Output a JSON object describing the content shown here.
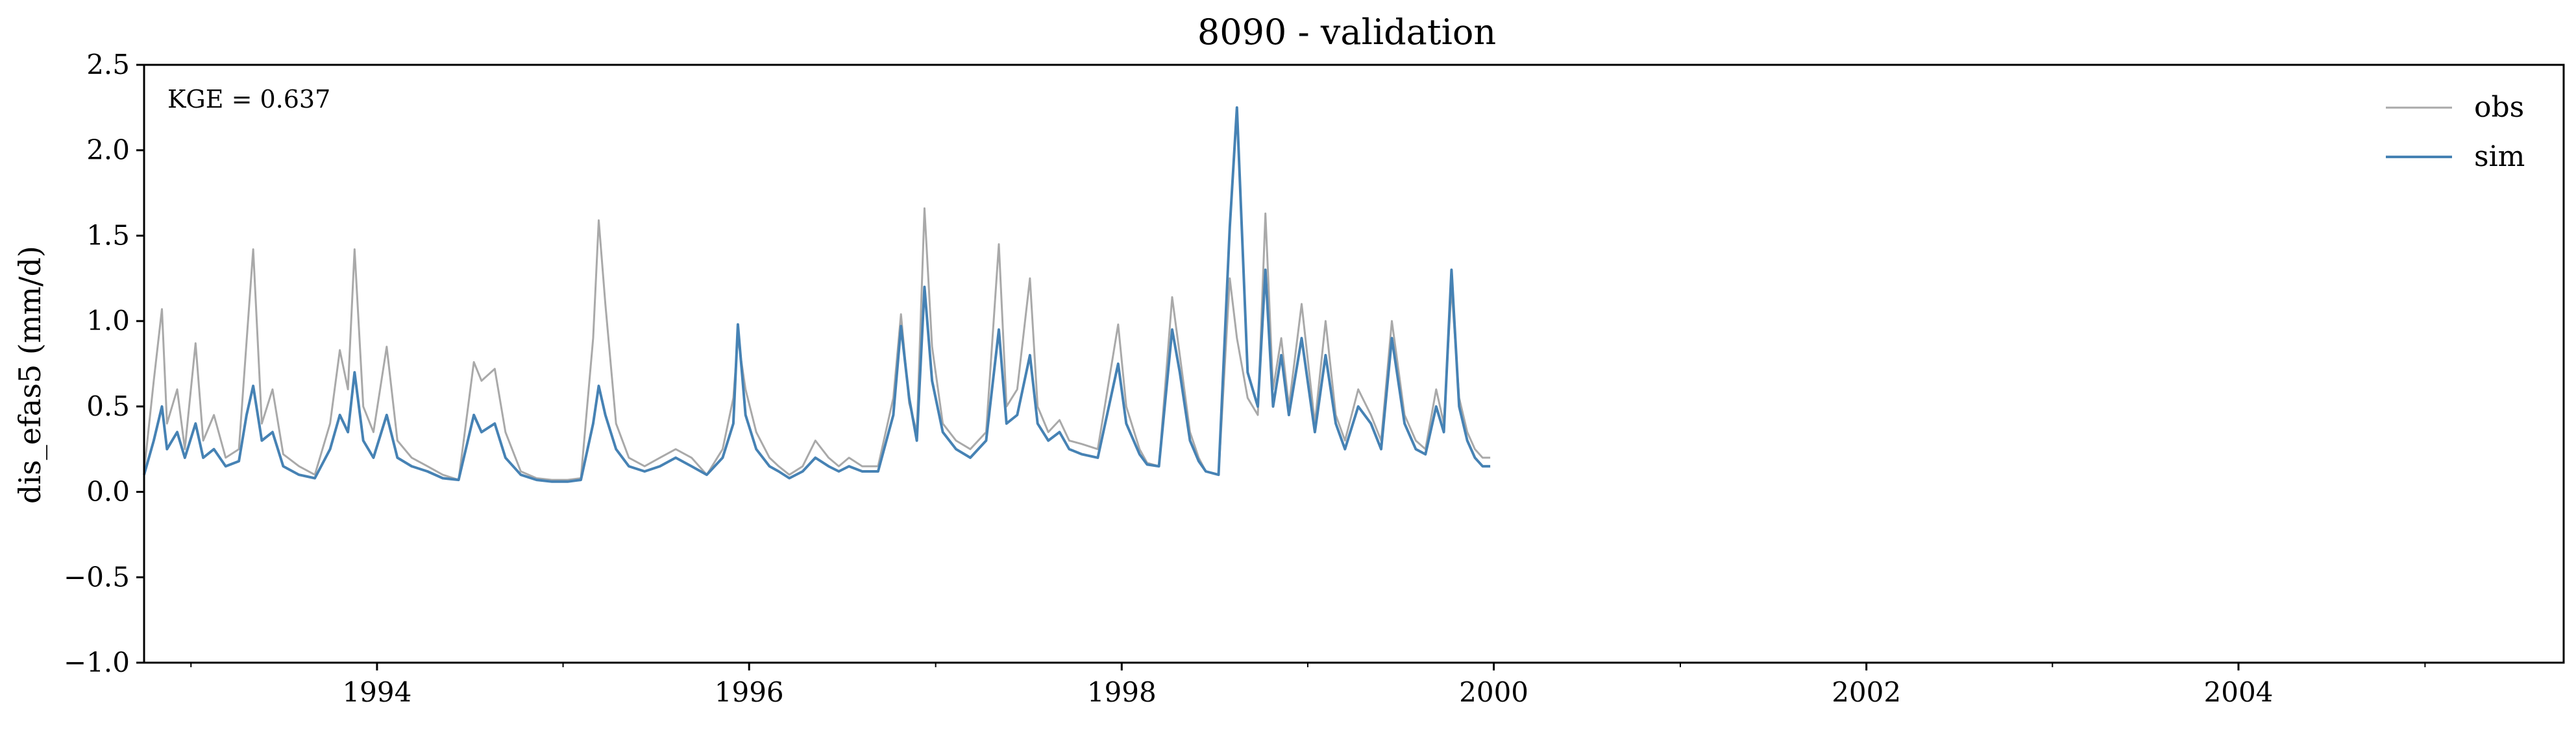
{
  "chart_data": {
    "type": "line",
    "title": "8090 - validation",
    "ylabel": "dis_efas5 (mm/d)",
    "xlabel": "",
    "xlim": [
      "1992-10-01",
      "2005-09-30"
    ],
    "ylim": [
      -1.0,
      2.5
    ],
    "grid": false,
    "legend": "top-right",
    "annotation": "KGE = 0.637",
    "x_ticks": [
      {
        "date": "1994-01-01",
        "label": "1994"
      },
      {
        "date": "1996-01-01",
        "label": "1996"
      },
      {
        "date": "1998-01-01",
        "label": "1998"
      },
      {
        "date": "2000-01-01",
        "label": "2000"
      },
      {
        "date": "2002-01-01",
        "label": "2002"
      },
      {
        "date": "2004-01-01",
        "label": "2004"
      }
    ],
    "y_ticks": [
      {
        "value": 2.5,
        "label": "2.5"
      },
      {
        "value": 2.0,
        "label": "2.0"
      },
      {
        "value": 1.5,
        "label": "1.5"
      },
      {
        "value": 1.0,
        "label": "1.0"
      },
      {
        "value": 0.5,
        "label": "0.5"
      },
      {
        "value": 0.0,
        "label": "0.0"
      },
      {
        "value": -0.5,
        "label": "−0.5"
      },
      {
        "value": -1.0,
        "label": "−1.0"
      }
    ],
    "series": [
      {
        "name": "obs",
        "color": "#a9a9a9",
        "points": [
          [
            "1992-10-01",
            0.12
          ],
          [
            "1992-10-20",
            0.65
          ],
          [
            "1992-11-05",
            1.07
          ],
          [
            "1992-11-15",
            0.4
          ],
          [
            "1992-12-05",
            0.6
          ],
          [
            "1992-12-20",
            0.25
          ],
          [
            "1993-01-10",
            0.87
          ],
          [
            "1993-01-25",
            0.3
          ],
          [
            "1993-02-15",
            0.45
          ],
          [
            "1993-03-10",
            0.2
          ],
          [
            "1993-04-05",
            0.25
          ],
          [
            "1993-04-20",
            0.88
          ],
          [
            "1993-05-03",
            1.42
          ],
          [
            "1993-05-20",
            0.4
          ],
          [
            "1993-06-10",
            0.6
          ],
          [
            "1993-07-01",
            0.22
          ],
          [
            "1993-08-01",
            0.15
          ],
          [
            "1993-09-01",
            0.1
          ],
          [
            "1993-10-01",
            0.4
          ],
          [
            "1993-10-20",
            0.83
          ],
          [
            "1993-11-05",
            0.6
          ],
          [
            "1993-11-18",
            1.42
          ],
          [
            "1993-12-05",
            0.5
          ],
          [
            "1993-12-25",
            0.35
          ],
          [
            "1994-01-20",
            0.85
          ],
          [
            "1994-02-10",
            0.3
          ],
          [
            "1994-03-10",
            0.2
          ],
          [
            "1994-04-10",
            0.15
          ],
          [
            "1994-05-10",
            0.1
          ],
          [
            "1994-06-10",
            0.07
          ],
          [
            "1994-07-10",
            0.76
          ],
          [
            "1994-07-25",
            0.65
          ],
          [
            "1994-08-20",
            0.72
          ],
          [
            "1994-09-10",
            0.35
          ],
          [
            "1994-10-10",
            0.12
          ],
          [
            "1994-11-10",
            0.08
          ],
          [
            "1994-12-10",
            0.07
          ],
          [
            "1995-01-10",
            0.07
          ],
          [
            "1995-02-05",
            0.08
          ],
          [
            "1995-03-01",
            0.9
          ],
          [
            "1995-03-12",
            1.59
          ],
          [
            "1995-03-25",
            1.1
          ],
          [
            "1995-04-15",
            0.4
          ],
          [
            "1995-05-10",
            0.2
          ],
          [
            "1995-06-10",
            0.15
          ],
          [
            "1995-07-10",
            0.2
          ],
          [
            "1995-08-10",
            0.25
          ],
          [
            "1995-09-10",
            0.2
          ],
          [
            "1995-10-10",
            0.1
          ],
          [
            "1995-11-10",
            0.25
          ],
          [
            "1995-12-01",
            0.55
          ],
          [
            "1995-12-10",
            0.9
          ],
          [
            "1995-12-25",
            0.6
          ],
          [
            "1996-01-15",
            0.35
          ],
          [
            "1996-02-10",
            0.2
          ],
          [
            "1996-02-28",
            0.15
          ],
          [
            "1996-03-20",
            0.1
          ],
          [
            "1996-04-15",
            0.15
          ],
          [
            "1996-05-10",
            0.3
          ],
          [
            "1996-06-05",
            0.2
          ],
          [
            "1996-06-25",
            0.15
          ],
          [
            "1996-07-15",
            0.2
          ],
          [
            "1996-08-10",
            0.15
          ],
          [
            "1996-09-10",
            0.15
          ],
          [
            "1996-10-10",
            0.55
          ],
          [
            "1996-10-25",
            1.04
          ],
          [
            "1996-11-10",
            0.52
          ],
          [
            "1996-11-25",
            0.35
          ],
          [
            "1996-12-10",
            1.66
          ],
          [
            "1996-12-25",
            0.85
          ],
          [
            "1997-01-15",
            0.4
          ],
          [
            "1997-02-10",
            0.3
          ],
          [
            "1997-03-10",
            0.25
          ],
          [
            "1997-04-10",
            0.35
          ],
          [
            "1997-05-05",
            1.45
          ],
          [
            "1997-05-20",
            0.5
          ],
          [
            "1997-06-10",
            0.6
          ],
          [
            "1997-07-05",
            1.25
          ],
          [
            "1997-07-20",
            0.5
          ],
          [
            "1997-08-10",
            0.35
          ],
          [
            "1997-09-01",
            0.42
          ],
          [
            "1997-09-20",
            0.3
          ],
          [
            "1997-10-15",
            0.28
          ],
          [
            "1997-11-15",
            0.25
          ],
          [
            "1997-12-25",
            0.98
          ],
          [
            "1998-01-10",
            0.5
          ],
          [
            "1998-02-05",
            0.25
          ],
          [
            "1998-02-20",
            0.17
          ],
          [
            "1998-03-15",
            0.15
          ],
          [
            "1998-04-10",
            1.14
          ],
          [
            "1998-04-25",
            0.8
          ],
          [
            "1998-05-15",
            0.35
          ],
          [
            "1998-06-01",
            0.2
          ],
          [
            "1998-06-15",
            0.12
          ],
          [
            "1998-07-10",
            0.1
          ],
          [
            "1998-08-01",
            1.25
          ],
          [
            "1998-08-15",
            0.9
          ],
          [
            "1998-09-05",
            0.55
          ],
          [
            "1998-09-25",
            0.45
          ],
          [
            "1998-10-10",
            1.63
          ],
          [
            "1998-10-25",
            0.6
          ],
          [
            "1998-11-10",
            0.9
          ],
          [
            "1998-11-25",
            0.5
          ],
          [
            "1998-12-20",
            1.1
          ],
          [
            "1999-01-15",
            0.4
          ],
          [
            "1999-02-05",
            1.0
          ],
          [
            "1999-02-25",
            0.45
          ],
          [
            "1999-03-15",
            0.3
          ],
          [
            "1999-04-10",
            0.6
          ],
          [
            "1999-05-05",
            0.45
          ],
          [
            "1999-05-25",
            0.3
          ],
          [
            "1999-06-15",
            1.0
          ],
          [
            "1999-07-10",
            0.45
          ],
          [
            "1999-08-01",
            0.3
          ],
          [
            "1999-08-20",
            0.25
          ],
          [
            "1999-09-10",
            0.6
          ],
          [
            "1999-09-25",
            0.4
          ],
          [
            "1999-10-10",
            1.2
          ],
          [
            "1999-10-25",
            0.55
          ],
          [
            "1999-11-10",
            0.35
          ],
          [
            "1999-11-25",
            0.25
          ],
          [
            "1999-12-10",
            0.2
          ],
          [
            "1999-12-25",
            0.2
          ]
        ]
      },
      {
        "name": "sim",
        "color": "#4682b4",
        "points": [
          [
            "1992-10-01",
            0.1
          ],
          [
            "1992-10-20",
            0.3
          ],
          [
            "1992-11-05",
            0.5
          ],
          [
            "1992-11-15",
            0.25
          ],
          [
            "1992-12-05",
            0.35
          ],
          [
            "1992-12-20",
            0.2
          ],
          [
            "1993-01-10",
            0.4
          ],
          [
            "1993-01-25",
            0.2
          ],
          [
            "1993-02-15",
            0.25
          ],
          [
            "1993-03-10",
            0.15
          ],
          [
            "1993-04-05",
            0.18
          ],
          [
            "1993-04-20",
            0.45
          ],
          [
            "1993-05-03",
            0.62
          ],
          [
            "1993-05-20",
            0.3
          ],
          [
            "1993-06-10",
            0.35
          ],
          [
            "1993-07-01",
            0.15
          ],
          [
            "1993-08-01",
            0.1
          ],
          [
            "1993-09-01",
            0.08
          ],
          [
            "1993-10-01",
            0.25
          ],
          [
            "1993-10-20",
            0.45
          ],
          [
            "1993-11-05",
            0.35
          ],
          [
            "1993-11-18",
            0.7
          ],
          [
            "1993-12-05",
            0.3
          ],
          [
            "1993-12-25",
            0.2
          ],
          [
            "1994-01-20",
            0.45
          ],
          [
            "1994-02-10",
            0.2
          ],
          [
            "1994-03-10",
            0.15
          ],
          [
            "1994-04-10",
            0.12
          ],
          [
            "1994-05-10",
            0.08
          ],
          [
            "1994-06-10",
            0.07
          ],
          [
            "1994-07-10",
            0.45
          ],
          [
            "1994-07-25",
            0.35
          ],
          [
            "1994-08-20",
            0.4
          ],
          [
            "1994-09-10",
            0.2
          ],
          [
            "1994-10-10",
            0.1
          ],
          [
            "1994-11-10",
            0.07
          ],
          [
            "1994-12-10",
            0.06
          ],
          [
            "1995-01-10",
            0.06
          ],
          [
            "1995-02-05",
            0.07
          ],
          [
            "1995-03-01",
            0.4
          ],
          [
            "1995-03-12",
            0.62
          ],
          [
            "1995-03-25",
            0.45
          ],
          [
            "1995-04-15",
            0.25
          ],
          [
            "1995-05-10",
            0.15
          ],
          [
            "1995-06-10",
            0.12
          ],
          [
            "1995-07-10",
            0.15
          ],
          [
            "1995-08-10",
            0.2
          ],
          [
            "1995-09-10",
            0.15
          ],
          [
            "1995-10-10",
            0.1
          ],
          [
            "1995-11-10",
            0.2
          ],
          [
            "1995-12-01",
            0.4
          ],
          [
            "1995-12-10",
            0.98
          ],
          [
            "1995-12-25",
            0.45
          ],
          [
            "1996-01-15",
            0.25
          ],
          [
            "1996-02-10",
            0.15
          ],
          [
            "1996-02-28",
            0.12
          ],
          [
            "1996-03-20",
            0.08
          ],
          [
            "1996-04-15",
            0.12
          ],
          [
            "1996-05-10",
            0.2
          ],
          [
            "1996-06-05",
            0.15
          ],
          [
            "1996-06-25",
            0.12
          ],
          [
            "1996-07-15",
            0.15
          ],
          [
            "1996-08-10",
            0.12
          ],
          [
            "1996-09-10",
            0.12
          ],
          [
            "1996-10-10",
            0.45
          ],
          [
            "1996-10-25",
            0.97
          ],
          [
            "1996-11-10",
            0.55
          ],
          [
            "1996-11-25",
            0.3
          ],
          [
            "1996-12-10",
            1.2
          ],
          [
            "1996-12-25",
            0.65
          ],
          [
            "1997-01-15",
            0.35
          ],
          [
            "1997-02-10",
            0.25
          ],
          [
            "1997-03-10",
            0.2
          ],
          [
            "1997-04-10",
            0.3
          ],
          [
            "1997-05-05",
            0.95
          ],
          [
            "1997-05-20",
            0.4
          ],
          [
            "1997-06-10",
            0.45
          ],
          [
            "1997-07-05",
            0.8
          ],
          [
            "1997-07-20",
            0.4
          ],
          [
            "1997-08-10",
            0.3
          ],
          [
            "1997-09-01",
            0.35
          ],
          [
            "1997-09-20",
            0.25
          ],
          [
            "1997-10-15",
            0.22
          ],
          [
            "1997-11-15",
            0.2
          ],
          [
            "1997-12-25",
            0.75
          ],
          [
            "1998-01-10",
            0.4
          ],
          [
            "1998-02-05",
            0.22
          ],
          [
            "1998-02-20",
            0.16
          ],
          [
            "1998-03-15",
            0.15
          ],
          [
            "1998-04-10",
            0.95
          ],
          [
            "1998-04-25",
            0.7
          ],
          [
            "1998-05-15",
            0.3
          ],
          [
            "1998-06-01",
            0.18
          ],
          [
            "1998-06-15",
            0.12
          ],
          [
            "1998-07-10",
            0.1
          ],
          [
            "1998-08-01",
            1.55
          ],
          [
            "1998-08-15",
            2.25
          ],
          [
            "1998-09-05",
            0.7
          ],
          [
            "1998-09-25",
            0.5
          ],
          [
            "1998-10-10",
            1.3
          ],
          [
            "1998-10-25",
            0.5
          ],
          [
            "1998-11-10",
            0.8
          ],
          [
            "1998-11-25",
            0.45
          ],
          [
            "1998-12-20",
            0.9
          ],
          [
            "1999-01-15",
            0.35
          ],
          [
            "1999-02-05",
            0.8
          ],
          [
            "1999-02-25",
            0.4
          ],
          [
            "1999-03-15",
            0.25
          ],
          [
            "1999-04-10",
            0.5
          ],
          [
            "1999-05-05",
            0.4
          ],
          [
            "1999-05-25",
            0.25
          ],
          [
            "1999-06-15",
            0.9
          ],
          [
            "1999-07-10",
            0.4
          ],
          [
            "1999-08-01",
            0.25
          ],
          [
            "1999-08-20",
            0.22
          ],
          [
            "1999-09-10",
            0.5
          ],
          [
            "1999-09-25",
            0.35
          ],
          [
            "1999-10-10",
            1.3
          ],
          [
            "1999-10-25",
            0.5
          ],
          [
            "1999-11-10",
            0.3
          ],
          [
            "1999-11-25",
            0.2
          ],
          [
            "1999-12-10",
            0.15
          ],
          [
            "1999-12-25",
            0.15
          ]
        ]
      }
    ]
  }
}
